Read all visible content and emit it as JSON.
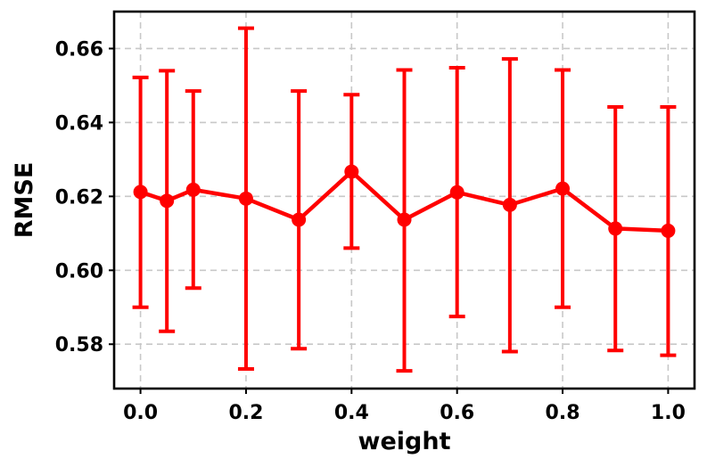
{
  "chart_data": {
    "type": "line",
    "xlabel": "weight",
    "ylabel": "RMSE",
    "xlim": [
      -0.05,
      1.05
    ],
    "ylim": [
      0.568,
      0.67
    ],
    "xticks": [
      0.0,
      0.2,
      0.4,
      0.6,
      0.8,
      1.0
    ],
    "xtick_labels": [
      "0.0",
      "0.2",
      "0.4",
      "0.6",
      "0.8",
      "1.0"
    ],
    "yticks": [
      0.58,
      0.6,
      0.62,
      0.64,
      0.66
    ],
    "ytick_labels": [
      "0.58",
      "0.60",
      "0.62",
      "0.64",
      "0.66"
    ],
    "grid": true,
    "color": "#ff0000",
    "series": [
      {
        "x": [
          0.0,
          0.05,
          0.1,
          0.2,
          0.3,
          0.4,
          0.5,
          0.6,
          0.7,
          0.8,
          0.9,
          1.0
        ],
        "y": [
          0.6212,
          0.6188,
          0.6218,
          0.6194,
          0.6137,
          0.6267,
          0.6137,
          0.6211,
          0.6177,
          0.6221,
          0.6113,
          0.6107
        ],
        "error_low": [
          0.59,
          0.5835,
          0.5952,
          0.5733,
          0.5788,
          0.606,
          0.5728,
          0.5875,
          0.578,
          0.59,
          0.5783,
          0.577
        ],
        "error_high": [
          0.6522,
          0.654,
          0.6485,
          0.6655,
          0.6485,
          0.6475,
          0.6542,
          0.6548,
          0.6572,
          0.6542,
          0.6442,
          0.6442
        ]
      }
    ]
  }
}
